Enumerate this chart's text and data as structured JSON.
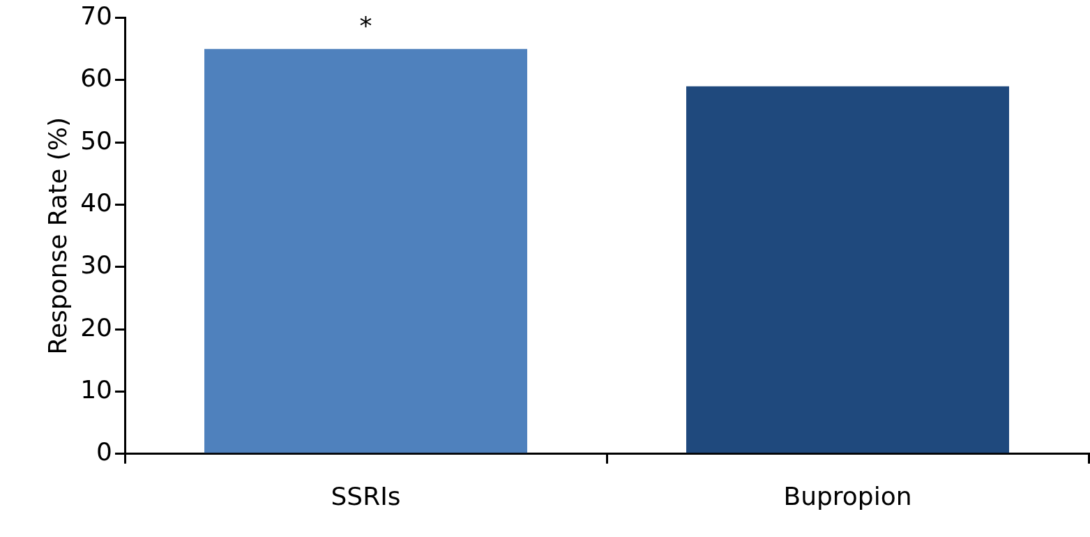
{
  "chart_data": {
    "type": "bar",
    "categories": [
      "SSRIs",
      "Bupropion"
    ],
    "values": [
      65,
      59
    ],
    "colors": [
      "#4f81bd",
      "#1f497d"
    ],
    "ylabel": "Response Rate (%)",
    "ylim": [
      0,
      70
    ],
    "yticks": [
      0,
      10,
      20,
      30,
      40,
      50,
      60,
      70
    ],
    "annotations": [
      "*"
    ],
    "grid": false,
    "legend": false
  }
}
